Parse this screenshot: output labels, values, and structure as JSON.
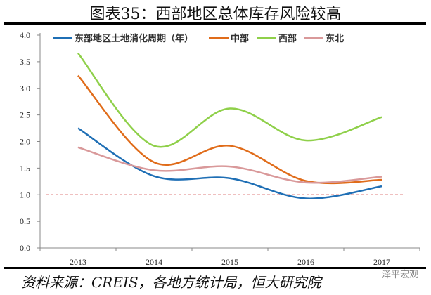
{
  "title": "图表35：西部地区总体库存风险较高",
  "source": "资料来源：CREIS，各地方统计局，恒大研究院",
  "watermark": "泽平宏观",
  "chart_data": {
    "type": "line",
    "categories": [
      "2013",
      "2014",
      "2015",
      "2016",
      "2017"
    ],
    "ylim": [
      0,
      4
    ],
    "yticks": [
      "0.0",
      "0.5",
      "1.0",
      "1.5",
      "2.0",
      "2.5",
      "3.0",
      "3.5",
      "4.0"
    ],
    "legend_position": "top",
    "reference_line": {
      "value": 1.0,
      "color": "#c00000",
      "style": "dashed"
    },
    "series": [
      {
        "name": "东部地区土地消化周期（年）",
        "color": "#1f6fb5",
        "values": [
          2.25,
          1.35,
          1.31,
          0.93,
          1.16
        ]
      },
      {
        "name": "中部",
        "color": "#e06c1a",
        "values": [
          3.24,
          1.61,
          1.92,
          1.26,
          1.28
        ]
      },
      {
        "name": "西部",
        "color": "#8fd04a",
        "values": [
          3.66,
          1.92,
          2.62,
          2.02,
          2.46
        ]
      },
      {
        "name": "东北",
        "color": "#d9999a",
        "values": [
          1.89,
          1.46,
          1.53,
          1.23,
          1.34
        ]
      }
    ]
  }
}
